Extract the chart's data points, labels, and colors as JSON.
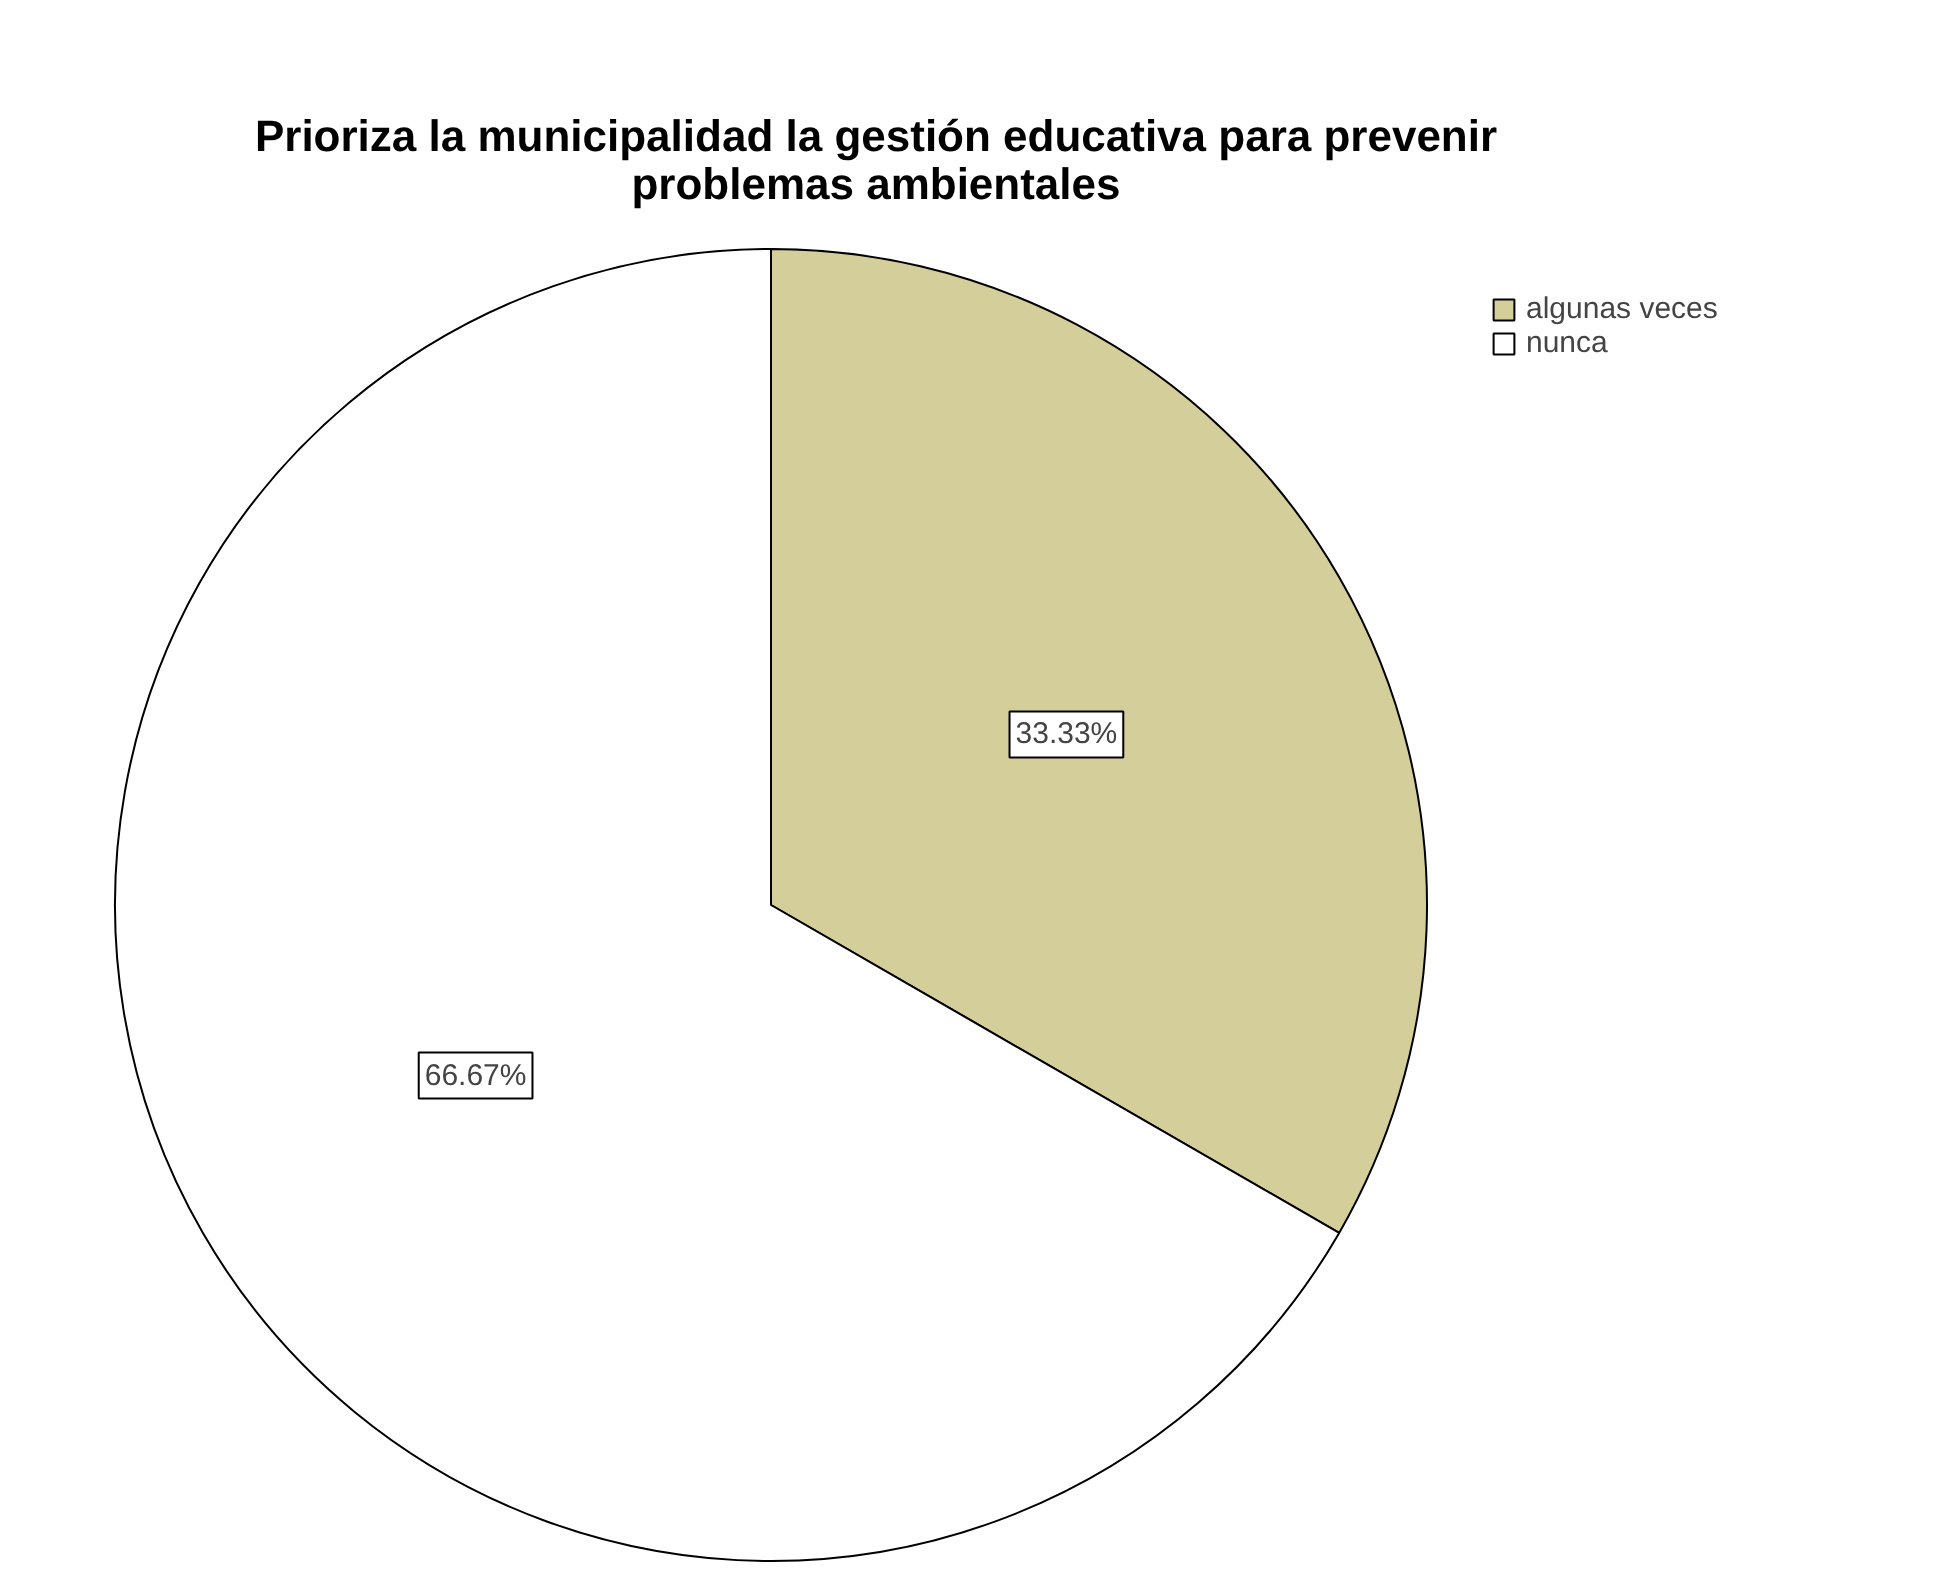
{
  "chart_data": {
    "type": "pie",
    "title": "Prioriza la municipalidad la gestión educativa para prevenir\nproblemas ambientales",
    "categories": [
      "algunas veces",
      "nunca"
    ],
    "values": [
      33.33,
      66.67
    ],
    "colors": [
      "#d3ce9a",
      "#ffffff"
    ],
    "value_labels": [
      "33.33%",
      "66.67%"
    ],
    "legend": "top right"
  }
}
